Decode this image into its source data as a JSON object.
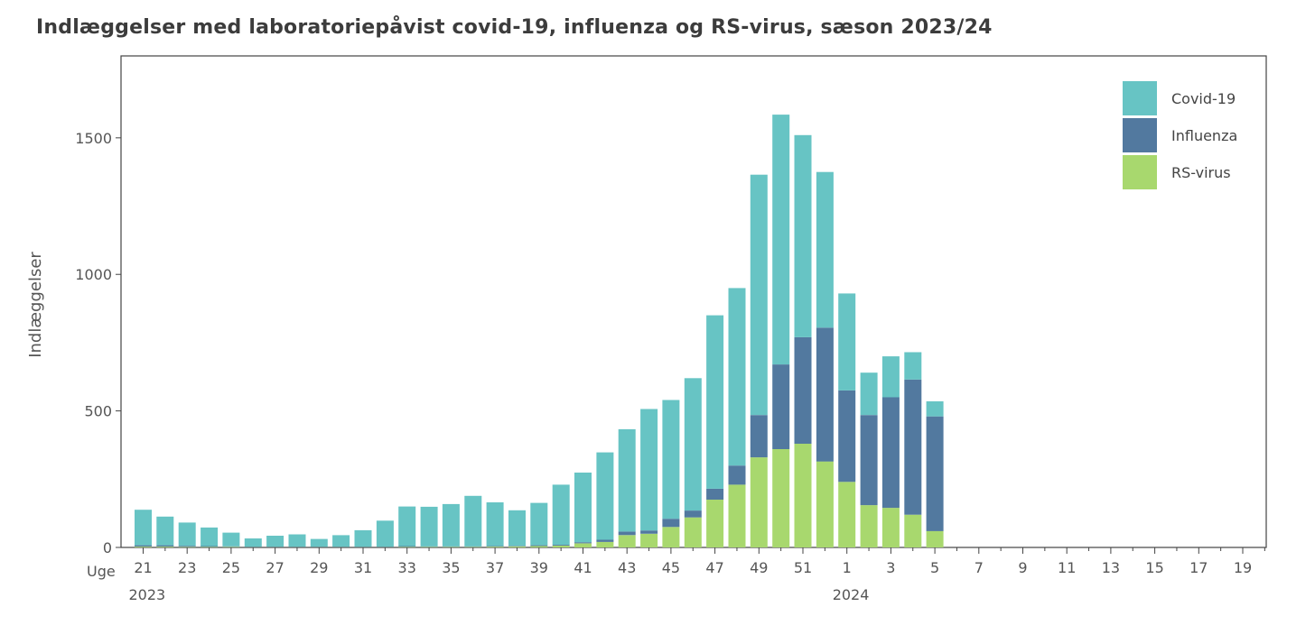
{
  "chart_data": {
    "type": "bar",
    "stacked": true,
    "title": "Indlæggelser med laboratoriepåvist covid-19, influenza og RS-virus, sæson 2023/24",
    "ylabel": "Indlæggelser",
    "x_axis_prefix": "Uge",
    "year_labels": [
      {
        "label": "2023",
        "at_week_index": 0
      },
      {
        "label": "2024",
        "at_week_index": 32
      }
    ],
    "ylim": [
      0,
      1800
    ],
    "yticks": [
      0,
      500,
      1000,
      1500
    ],
    "legend_position": "top-right",
    "weeks": [
      "21",
      "22",
      "23",
      "24",
      "25",
      "26",
      "27",
      "28",
      "29",
      "30",
      "31",
      "32",
      "33",
      "34",
      "35",
      "36",
      "37",
      "38",
      "39",
      "40",
      "41",
      "42",
      "43",
      "44",
      "45",
      "46",
      "47",
      "48",
      "49",
      "50",
      "51",
      "52",
      "1",
      "2",
      "3",
      "4",
      "5",
      "6",
      "7",
      "8",
      "9",
      "10",
      "11",
      "12",
      "13",
      "14",
      "15",
      "16",
      "17",
      "18",
      "19",
      "20"
    ],
    "tick_labels": [
      "21",
      "23",
      "25",
      "27",
      "29",
      "31",
      "33",
      "35",
      "37",
      "39",
      "41",
      "43",
      "45",
      "47",
      "49",
      "51",
      "1",
      "3",
      "5",
      "7",
      "9",
      "11",
      "13",
      "15",
      "17",
      "19"
    ],
    "series": [
      {
        "name": "RS-virus",
        "color": "#a8d86e",
        "values": [
          3,
          3,
          2,
          2,
          2,
          1,
          1,
          1,
          1,
          1,
          1,
          1,
          2,
          2,
          2,
          2,
          3,
          4,
          5,
          7,
          15,
          20,
          45,
          50,
          75,
          110,
          175,
          230,
          330,
          360,
          380,
          315,
          240,
          155,
          145,
          120,
          60,
          0,
          0,
          0,
          0,
          0,
          0,
          0,
          0,
          0,
          0,
          0,
          0,
          0,
          0,
          0
        ]
      },
      {
        "name": "Influenza",
        "color": "#52799f",
        "values": [
          5,
          5,
          4,
          3,
          2,
          2,
          2,
          2,
          2,
          2,
          2,
          2,
          3,
          2,
          2,
          2,
          2,
          2,
          3,
          3,
          4,
          8,
          13,
          12,
          30,
          25,
          40,
          70,
          155,
          310,
          390,
          490,
          335,
          330,
          405,
          495,
          420,
          0,
          0,
          0,
          0,
          0,
          0,
          0,
          0,
          0,
          0,
          0,
          0,
          0,
          0,
          0
        ]
      },
      {
        "name": "Covid-19",
        "color": "#67c4c4",
        "values": [
          130,
          105,
          85,
          68,
          50,
          30,
          40,
          45,
          28,
          42,
          60,
          95,
          145,
          145,
          155,
          185,
          160,
          130,
          155,
          220,
          255,
          320,
          375,
          445,
          435,
          485,
          635,
          650,
          880,
          915,
          740,
          570,
          355,
          155,
          150,
          100,
          55,
          0,
          0,
          0,
          0,
          0,
          0,
          0,
          0,
          0,
          0,
          0,
          0,
          0,
          0,
          0
        ]
      }
    ],
    "legend_order": [
      "Covid-19",
      "Influenza",
      "RS-virus"
    ]
  }
}
